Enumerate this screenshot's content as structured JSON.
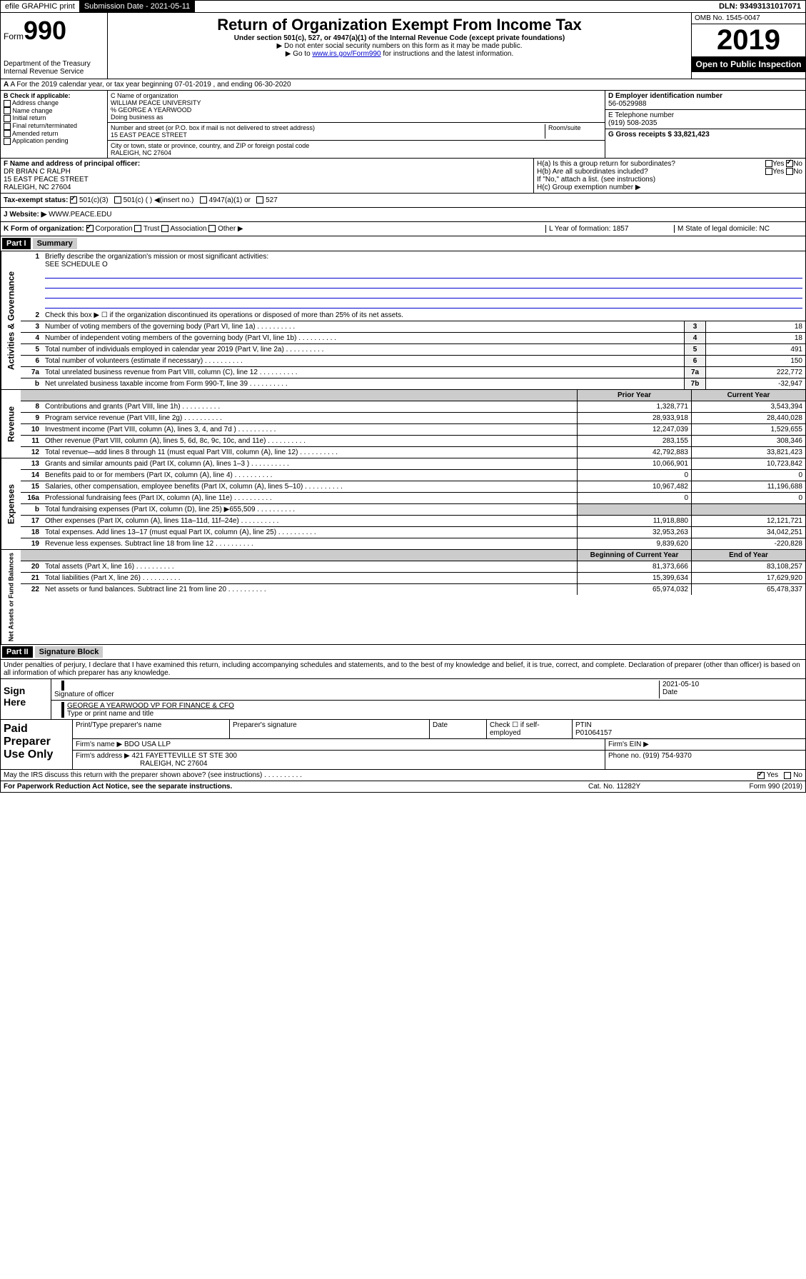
{
  "top": {
    "efile": "efile GRAPHIC print",
    "submission": "Submission Date - 2021-05-11",
    "dln": "DLN: 93493131017071"
  },
  "header": {
    "form": "Form",
    "num": "990",
    "title": "Return of Organization Exempt From Income Tax",
    "subtitle": "Under section 501(c), 527, or 4947(a)(1) of the Internal Revenue Code (except private foundations)",
    "note1": "▶ Do not enter social security numbers on this form as it may be made public.",
    "note2_pre": "▶ Go to ",
    "note2_link": "www.irs.gov/Form990",
    "note2_post": " for instructions and the latest information.",
    "omb": "OMB No. 1545-0047",
    "year": "2019",
    "open": "Open to Public Inspection",
    "dept": "Department of the Treasury Internal Revenue Service"
  },
  "row_a": "A For the 2019 calendar year, or tax year beginning 07-01-2019     , and ending 06-30-2020",
  "col_b": {
    "label": "B Check if applicable:",
    "items": [
      "Address change",
      "Name change",
      "Initial return",
      "Final return/terminated",
      "Amended return",
      "Application pending"
    ]
  },
  "col_c": {
    "name_label": "C Name of organization",
    "name": "WILLIAM PEACE UNIVERSITY",
    "care_of": "% GEORGE A YEARWOOD",
    "dba_label": "Doing business as",
    "addr_label": "Number and street (or P.O. box if mail is not delivered to street address)",
    "room_label": "Room/suite",
    "addr": "15 EAST PEACE STREET",
    "city_label": "City or town, state or province, country, and ZIP or foreign postal code",
    "city": "RALEIGH, NC  27604"
  },
  "col_d": {
    "ein_label": "D Employer identification number",
    "ein": "56-0529988",
    "phone_label": "E Telephone number",
    "phone": "(919) 508-2035",
    "gross_label": "G Gross receipts $ 33,821,423"
  },
  "row_f": {
    "label": "F  Name and address of principal officer:",
    "name": "DR BRIAN C RALPH",
    "addr1": "15 EAST PEACE STREET",
    "addr2": "RALEIGH, NC  27604"
  },
  "col_h": {
    "ha": "H(a)  Is this a group return for subordinates?",
    "hb": "H(b)  Are all subordinates included?",
    "hb_note": "If \"No,\" attach a list. (see instructions)",
    "hc": "H(c)  Group exemption number ▶",
    "yes": "Yes",
    "no": "No"
  },
  "tax_status": {
    "label": "Tax-exempt status:",
    "opts": [
      "501(c)(3)",
      "501(c) (  ) ◀(insert no.)",
      "4947(a)(1) or",
      "527"
    ]
  },
  "row_j": {
    "label": "Website: ▶",
    "val": "WWW.PEACE.EDU"
  },
  "row_k": {
    "label": "K Form of organization:",
    "opts": [
      "Corporation",
      "Trust",
      "Association",
      "Other ▶"
    ],
    "l_label": "L Year of formation: 1857",
    "m_label": "M State of legal domicile: NC"
  },
  "part1": {
    "header": "Part I",
    "title": "Summary"
  },
  "mission": {
    "label": "Briefly describe the organization's mission or most significant activities:",
    "text": "SEE SCHEDULE O"
  },
  "gov_side": "Activities & Governance",
  "rev_side": "Revenue",
  "exp_side": "Expenses",
  "net_side": "Net Assets or Fund Balances",
  "lines_gov": [
    {
      "n": "2",
      "d": "Check this box ▶ ☐  if the organization discontinued its operations or disposed of more than 25% of its net assets."
    },
    {
      "n": "3",
      "d": "Number of voting members of the governing body (Part VI, line 1a)",
      "box": "3",
      "v": "18"
    },
    {
      "n": "4",
      "d": "Number of independent voting members of the governing body (Part VI, line 1b)",
      "box": "4",
      "v": "18"
    },
    {
      "n": "5",
      "d": "Total number of individuals employed in calendar year 2019 (Part V, line 2a)",
      "box": "5",
      "v": "491"
    },
    {
      "n": "6",
      "d": "Total number of volunteers (estimate if necessary)",
      "box": "6",
      "v": "150"
    },
    {
      "n": "7a",
      "d": "Total unrelated business revenue from Part VIII, column (C), line 12",
      "box": "7a",
      "v": "222,772"
    },
    {
      "n": "b",
      "d": "Net unrelated business taxable income from Form 990-T, line 39",
      "box": "7b",
      "v": "-32,947"
    }
  ],
  "two_col_h1": "Prior Year",
  "two_col_h2": "Current Year",
  "lines_rev": [
    {
      "n": "8",
      "d": "Contributions and grants (Part VIII, line 1h)",
      "v1": "1,328,771",
      "v2": "3,543,394"
    },
    {
      "n": "9",
      "d": "Program service revenue (Part VIII, line 2g)",
      "v1": "28,933,918",
      "v2": "28,440,028"
    },
    {
      "n": "10",
      "d": "Investment income (Part VIII, column (A), lines 3, 4, and 7d )",
      "v1": "12,247,039",
      "v2": "1,529,655"
    },
    {
      "n": "11",
      "d": "Other revenue (Part VIII, column (A), lines 5, 6d, 8c, 9c, 10c, and 11e)",
      "v1": "283,155",
      "v2": "308,346"
    },
    {
      "n": "12",
      "d": "Total revenue—add lines 8 through 11 (must equal Part VIII, column (A), line 12)",
      "v1": "42,792,883",
      "v2": "33,821,423"
    }
  ],
  "lines_exp": [
    {
      "n": "13",
      "d": "Grants and similar amounts paid (Part IX, column (A), lines 1–3 )",
      "v1": "10,066,901",
      "v2": "10,723,842"
    },
    {
      "n": "14",
      "d": "Benefits paid to or for members (Part IX, column (A), line 4)",
      "v1": "0",
      "v2": "0"
    },
    {
      "n": "15",
      "d": "Salaries, other compensation, employee benefits (Part IX, column (A), lines 5–10)",
      "v1": "10,967,482",
      "v2": "11,196,688"
    },
    {
      "n": "16a",
      "d": "Professional fundraising fees (Part IX, column (A), line 11e)",
      "v1": "0",
      "v2": "0"
    },
    {
      "n": "b",
      "d": "Total fundraising expenses (Part IX, column (D), line 25) ▶655,509",
      "v1": "",
      "v2": "",
      "shaded": true
    },
    {
      "n": "17",
      "d": "Other expenses (Part IX, column (A), lines 11a–11d, 11f–24e)",
      "v1": "11,918,880",
      "v2": "12,121,721"
    },
    {
      "n": "18",
      "d": "Total expenses. Add lines 13–17 (must equal Part IX, column (A), line 25)",
      "v1": "32,953,263",
      "v2": "34,042,251"
    },
    {
      "n": "19",
      "d": "Revenue less expenses. Subtract line 18 from line 12",
      "v1": "9,839,620",
      "v2": "-220,828"
    }
  ],
  "two_col_h3": "Beginning of Current Year",
  "two_col_h4": "End of Year",
  "lines_net": [
    {
      "n": "20",
      "d": "Total assets (Part X, line 16)",
      "v1": "81,373,666",
      "v2": "83,108,257"
    },
    {
      "n": "21",
      "d": "Total liabilities (Part X, line 26)",
      "v1": "15,399,634",
      "v2": "17,629,920"
    },
    {
      "n": "22",
      "d": "Net assets or fund balances. Subtract line 21 from line 20",
      "v1": "65,974,032",
      "v2": "65,478,337"
    }
  ],
  "part2": {
    "header": "Part II",
    "title": "Signature Block"
  },
  "perjury": "Under penalties of perjury, I declare that I have examined this return, including accompanying schedules and statements, and to the best of my knowledge and belief, it is true, correct, and complete. Declaration of preparer (other than officer) is based on all information of which preparer has any knowledge.",
  "sign": {
    "left": "Sign Here",
    "sig_label": "Signature of officer",
    "date": "2021-05-10",
    "date_label": "Date",
    "name": "GEORGE A YEARWOOD VP FOR FINANCE & CFO",
    "name_label": "Type or print name and title"
  },
  "paid": {
    "left": "Paid Preparer Use Only",
    "h1": "Print/Type preparer's name",
    "h2": "Preparer's signature",
    "h3": "Date",
    "h4_label": "Check ☐ if self-employed",
    "h5_label": "PTIN",
    "h5_val": "P01064157",
    "firm_label": "Firm's name    ▶",
    "firm": "BDO USA LLP",
    "ein_label": "Firm's EIN ▶",
    "addr_label": "Firm's address ▶",
    "addr": "421 FAYETTEVILLE ST STE 300",
    "addr2": "RALEIGH, NC  27604",
    "phone_label": "Phone no. (919) 754-9370"
  },
  "discuss": {
    "q": "May the IRS discuss this return with the preparer shown above? (see instructions)",
    "yes": "Yes",
    "no": "No"
  },
  "footer": {
    "left": "For Paperwork Reduction Act Notice, see the separate instructions.",
    "mid": "Cat. No. 11282Y",
    "right": "Form 990 (2019)"
  }
}
